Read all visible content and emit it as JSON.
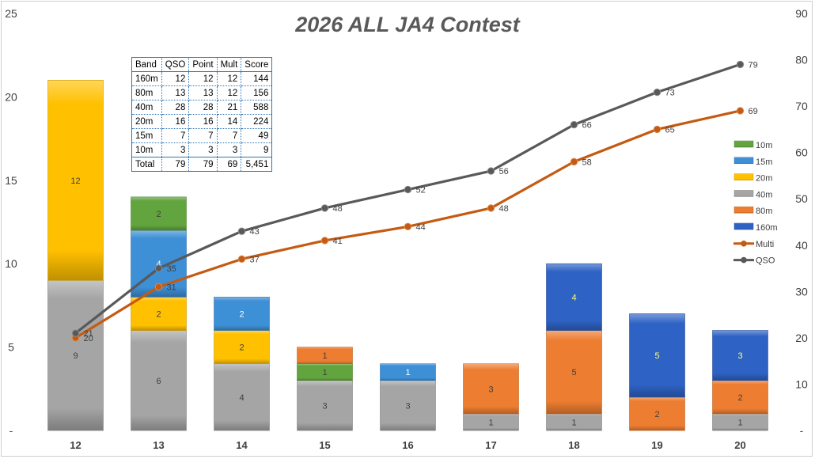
{
  "chart_data": {
    "type": "bar",
    "title": "2026 ALL JA4 Contest",
    "categories": [
      "12",
      "13",
      "14",
      "15",
      "16",
      "17",
      "18",
      "19",
      "20"
    ],
    "stack_order": [
      "40m",
      "20m",
      "15m",
      "10m",
      "80m",
      "160m"
    ],
    "series": [
      {
        "name": "160m",
        "color": "#2e62c4",
        "values": [
          0,
          0,
          0,
          0,
          0,
          0,
          4,
          5,
          3
        ]
      },
      {
        "name": "80m",
        "color": "#ed7d31",
        "values": [
          0,
          0,
          0,
          1,
          0,
          3,
          5,
          2,
          2
        ]
      },
      {
        "name": "40m",
        "color": "#a5a5a5",
        "values": [
          9,
          6,
          4,
          3,
          3,
          1,
          1,
          0,
          1
        ]
      },
      {
        "name": "20m",
        "color": "#ffc000",
        "values": [
          12,
          2,
          2,
          0,
          0,
          0,
          0,
          0,
          0
        ]
      },
      {
        "name": "15m",
        "color": "#3d8fd6",
        "values": [
          0,
          4,
          2,
          0,
          1,
          0,
          0,
          0,
          0
        ]
      },
      {
        "name": "10m",
        "color": "#62a43e",
        "values": [
          0,
          2,
          0,
          1,
          0,
          0,
          0,
          0,
          0
        ]
      }
    ],
    "lines": [
      {
        "name": "Multi",
        "color": "#c55a11",
        "values": [
          20,
          31,
          37,
          41,
          44,
          48,
          58,
          65,
          69
        ]
      },
      {
        "name": "QSO",
        "color": "#595959",
        "values": [
          21,
          35,
          43,
          48,
          52,
          56,
          66,
          73,
          79
        ]
      }
    ],
    "y_left": {
      "min": 0,
      "max": 25,
      "ticks": [
        "-",
        "5",
        "10",
        "15",
        "20",
        "25"
      ]
    },
    "y_right": {
      "min": 0,
      "max": 90,
      "ticks": [
        "-",
        "10",
        "20",
        "30",
        "40",
        "50",
        "60",
        "70",
        "80",
        "90"
      ]
    },
    "legend": [
      "10m",
      "15m",
      "20m",
      "40m",
      "80m",
      "160m",
      "Multi",
      "QSO"
    ],
    "legend_position": "right",
    "grid": false
  },
  "table": {
    "header": [
      "Band",
      "QSO",
      "Point",
      "Mult",
      "Score"
    ],
    "rows": [
      [
        "160m",
        "12",
        "12",
        "12",
        "144"
      ],
      [
        "80m",
        "13",
        "13",
        "12",
        "156"
      ],
      [
        "40m",
        "28",
        "28",
        "21",
        "588"
      ],
      [
        "20m",
        "16",
        "16",
        "14",
        "224"
      ],
      [
        "15m",
        "7",
        "7",
        "7",
        "49"
      ],
      [
        "10m",
        "3",
        "3",
        "3",
        "9"
      ],
      [
        "Total",
        "79",
        "79",
        "69",
        "5,451"
      ]
    ]
  }
}
